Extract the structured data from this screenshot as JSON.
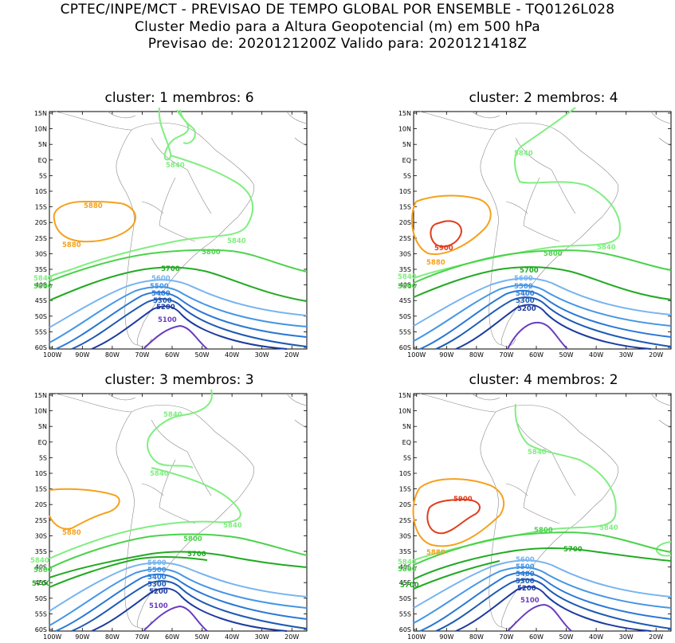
{
  "header": {
    "line1": "CPTEC/INPE/MCT - PREVISAO DE TEMPO GLOBAL POR ENSEMBLE - TQ0126L028",
    "line2": "Cluster Medio para a Altura Geopotencial (m) em 500 hPa",
    "line3": "Previsao de: 2020121200Z   Valido para: 2020121418Z"
  },
  "axes": {
    "lat_labels": [
      "15N",
      "10N",
      "5N",
      "EQ",
      "5S",
      "10S",
      "15S",
      "20S",
      "25S",
      "30S",
      "35S",
      "40S",
      "45S",
      "50S",
      "55S",
      "60S"
    ],
    "lon_labels": [
      "100W",
      "90W",
      "80W",
      "70W",
      "60W",
      "50W",
      "40W",
      "30W",
      "20W"
    ]
  },
  "colors": {
    "c5900": "#e03c1c",
    "c5880": "#f5a11c",
    "c5840": "#80ee80",
    "c5800": "#4cd24c",
    "c5700": "#22aa22",
    "c5600": "#78b4f0",
    "c5500": "#4696e6",
    "c5400": "#2a78d6",
    "c5300": "#1e5ab4",
    "c5200": "#1e3ca0",
    "c5100": "#6a3cbe"
  },
  "panels": [
    {
      "title": "cluster: 1   membros: 6",
      "labels": {
        "l5880a": "5880",
        "l5880b": "5880",
        "l5840a": "5840",
        "l5840b": "5840",
        "l5840c": "5840",
        "l5800a": "5800",
        "l5800b": "5800",
        "l5700": "5700",
        "l5600": "5600",
        "l5500": "5500",
        "l5400": "5400",
        "l5300": "5300",
        "l5200": "5200",
        "l5100": "5100"
      }
    },
    {
      "title": "cluster: 2   membros: 4",
      "labels": {
        "l5900": "5900",
        "l5880": "5880",
        "l5840a": "5840",
        "l5840b": "5840",
        "l5840c": "5840",
        "l5800a": "5800",
        "l5800b": "5800",
        "l5700": "5700",
        "l5600": "5600",
        "l5500": "5500",
        "l5400": "5400",
        "l5300": "5300",
        "l5200": "5200"
      }
    },
    {
      "title": "cluster: 3   membros: 3",
      "labels": {
        "l5880": "5880",
        "l5840a": "5840",
        "l5840b": "5840",
        "l5840c": "5840",
        "l5840d": "5840",
        "l5800a": "5800",
        "l5800b": "5800",
        "l5700a": "5700",
        "l5700b": "5700",
        "l5600": "5600",
        "l5500": "5500",
        "l5400": "5400",
        "l5300": "5300",
        "l5200": "5200",
        "l5100": "5100"
      }
    },
    {
      "title": "cluster: 4   membros: 2",
      "labels": {
        "l5900": "5900",
        "l5880": "5880",
        "l5840a": "5840",
        "l5840b": "5840",
        "l5840c": "5840",
        "l5800a": "5800",
        "l5800b": "5800",
        "l5700a": "5700",
        "l5700b": "5700",
        "l5600": "5600",
        "l5500": "5500",
        "l5400": "5400",
        "l5300": "5300",
        "l5200": "5200",
        "l5100": "5100"
      }
    }
  ]
}
